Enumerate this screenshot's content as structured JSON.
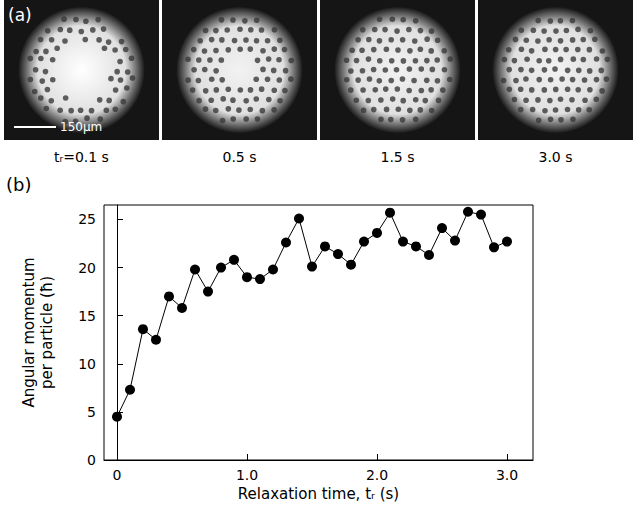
{
  "panel_a": {
    "label": "(a)",
    "scale_bar": "150μm",
    "frames": [
      "tᵣ=0.1 s",
      "0.5 s",
      "1.5 s",
      "3.0 s"
    ]
  },
  "chart_data": {
    "panel_label": "(b)",
    "type": "line",
    "marker": "circle",
    "color": "#000000",
    "x_label": "Relaxation time, tᵣ (s)",
    "y_label": "Angular momentum per particle (ħ)",
    "x": [
      0,
      0.1,
      0.2,
      0.3,
      0.4,
      0.5,
      0.6,
      0.7,
      0.8,
      0.9,
      1.0,
      1.1,
      1.2,
      1.3,
      1.4,
      1.5,
      1.6,
      1.7,
      1.8,
      1.9,
      2.0,
      2.1,
      2.2,
      2.3,
      2.4,
      2.5,
      2.6,
      2.7,
      2.8,
      2.9,
      3.0
    ],
    "values": [
      4.5,
      7.3,
      13.6,
      12.5,
      17.0,
      15.8,
      19.8,
      17.5,
      20.0,
      20.8,
      19.0,
      18.8,
      19.8,
      22.6,
      25.1,
      20.1,
      22.2,
      21.4,
      20.3,
      22.7,
      23.6,
      25.7,
      22.7,
      22.2,
      21.3,
      24.1,
      22.8,
      25.8,
      25.5,
      22.1,
      22.7
    ],
    "xlim": [
      -0.1,
      3.2
    ],
    "ylim": [
      0,
      26.5
    ],
    "xticks": [
      0,
      {
        "value": 1,
        "label": "1.0"
      },
      {
        "value": 2,
        "label": "2.0"
      },
      {
        "value": 3,
        "label": "3.0"
      }
    ],
    "yticks": [
      0,
      5,
      10,
      15,
      20,
      25
    ],
    "grid": false
  }
}
